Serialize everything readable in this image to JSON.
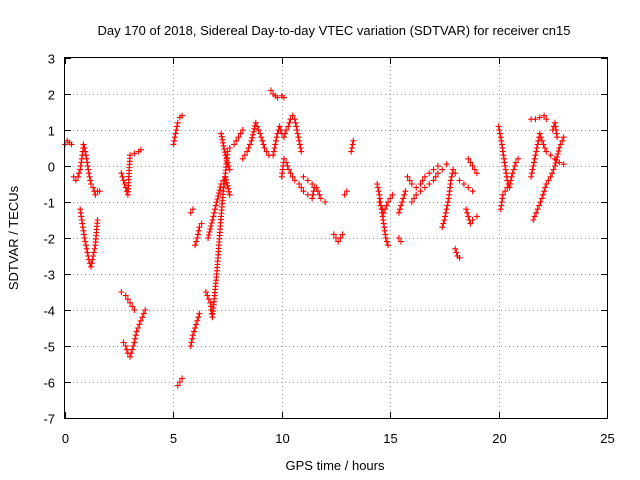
{
  "chart_data": {
    "type": "scatter",
    "title": "Day 170 of 2018, Sidereal Day-to-day VTEC variation (SDTVAR) for receiver cn15",
    "xlabel": "GPS time / hours",
    "ylabel": "SDTVAR / TECUs",
    "xlim": [
      0,
      25
    ],
    "ylim": [
      -7,
      3
    ],
    "xticks": [
      "0",
      "5",
      "10",
      "15",
      "20",
      "25"
    ],
    "yticks": [
      "-7",
      "-6",
      "-5",
      "-4",
      "-3",
      "-2",
      "-1",
      "0",
      "1",
      "2",
      "3"
    ],
    "grid": true,
    "marker": "plus",
    "color": "#ff0000",
    "segments": [
      [
        [
          0.0,
          0.6
        ],
        [
          0.1,
          0.7
        ],
        [
          0.2,
          0.65
        ],
        [
          0.3,
          0.6
        ]
      ],
      [
        [
          0.4,
          -0.3
        ],
        [
          0.5,
          -0.4
        ],
        [
          0.6,
          -0.3
        ],
        [
          0.7,
          -0.1
        ],
        [
          0.8,
          0.3
        ],
        [
          0.85,
          0.6
        ],
        [
          0.9,
          0.5
        ],
        [
          1.0,
          0.2
        ],
        [
          1.1,
          -0.2
        ],
        [
          1.2,
          -0.5
        ],
        [
          1.3,
          -0.6
        ],
        [
          1.4,
          -0.8
        ],
        [
          1.5,
          -0.7
        ],
        [
          1.6,
          -0.7
        ]
      ],
      [
        [
          0.7,
          -1.2
        ],
        [
          0.8,
          -1.6
        ],
        [
          0.9,
          -2.0
        ],
        [
          1.0,
          -2.3
        ],
        [
          1.1,
          -2.6
        ],
        [
          1.2,
          -2.8
        ],
        [
          1.3,
          -2.5
        ],
        [
          1.4,
          -2.2
        ],
        [
          1.5,
          -1.5
        ]
      ],
      [
        [
          2.6,
          -0.2
        ],
        [
          2.7,
          -0.4
        ],
        [
          2.8,
          -0.6
        ],
        [
          2.9,
          -0.8
        ],
        [
          3.0,
          0.3
        ],
        [
          3.2,
          0.35
        ],
        [
          3.4,
          0.4
        ],
        [
          3.5,
          0.45
        ]
      ],
      [
        [
          2.6,
          -3.5
        ],
        [
          2.8,
          -3.6
        ],
        [
          3.0,
          -3.8
        ],
        [
          3.2,
          -4.0
        ]
      ],
      [
        [
          2.7,
          -4.9
        ],
        [
          2.8,
          -5.0
        ],
        [
          2.9,
          -5.2
        ],
        [
          3.0,
          -5.3
        ],
        [
          3.1,
          -5.1
        ],
        [
          3.2,
          -4.9
        ],
        [
          3.3,
          -4.6
        ],
        [
          3.5,
          -4.3
        ],
        [
          3.7,
          -4.0
        ]
      ],
      [
        [
          5.0,
          0.6
        ],
        [
          5.1,
          0.9
        ],
        [
          5.2,
          1.2
        ],
        [
          5.3,
          1.35
        ],
        [
          5.4,
          1.4
        ]
      ],
      [
        [
          5.2,
          -6.1
        ],
        [
          5.3,
          -6.0
        ],
        [
          5.4,
          -5.9
        ]
      ],
      [
        [
          5.8,
          -1.3
        ],
        [
          5.9,
          -1.2
        ]
      ],
      [
        [
          5.8,
          -5.0
        ],
        [
          5.9,
          -4.7
        ],
        [
          6.0,
          -4.5
        ],
        [
          6.1,
          -4.3
        ],
        [
          6.2,
          -4.1
        ]
      ],
      [
        [
          6.0,
          -2.2
        ],
        [
          6.1,
          -2.0
        ],
        [
          6.2,
          -1.7
        ],
        [
          6.3,
          -1.6
        ]
      ],
      [
        [
          6.5,
          -3.5
        ],
        [
          6.7,
          -3.8
        ],
        [
          6.8,
          -4.2
        ],
        [
          6.9,
          -3.6
        ],
        [
          7.0,
          -3.0
        ],
        [
          7.1,
          -2.2
        ],
        [
          7.2,
          -1.4
        ],
        [
          7.3,
          -0.7
        ],
        [
          7.4,
          -0.2
        ],
        [
          7.5,
          0.4
        ],
        [
          7.6,
          0.5
        ],
        [
          7.8,
          0.6
        ],
        [
          8.0,
          0.8
        ],
        [
          8.2,
          1.0
        ]
      ],
      [
        [
          6.6,
          -2.0
        ],
        [
          6.8,
          -1.5
        ],
        [
          7.0,
          -1.0
        ],
        [
          7.2,
          -0.5
        ],
        [
          7.4,
          -0.3
        ],
        [
          7.6,
          -0.8
        ]
      ],
      [
        [
          7.2,
          0.9
        ],
        [
          7.4,
          0.3
        ],
        [
          7.6,
          -0.1
        ]
      ],
      [
        [
          8.2,
          0.2
        ],
        [
          8.4,
          0.4
        ],
        [
          8.6,
          0.7
        ],
        [
          8.8,
          1.2
        ],
        [
          9.0,
          0.9
        ],
        [
          9.2,
          0.5
        ],
        [
          9.4,
          0.3
        ]
      ],
      [
        [
          9.5,
          2.1
        ],
        [
          9.6,
          2.0
        ],
        [
          9.7,
          1.95
        ],
        [
          9.8,
          1.9
        ],
        [
          10.0,
          1.95
        ],
        [
          10.1,
          1.9
        ]
      ],
      [
        [
          9.6,
          0.3
        ],
        [
          9.7,
          0.6
        ],
        [
          9.8,
          0.9
        ],
        [
          9.9,
          1.1
        ],
        [
          10.0,
          0.9
        ],
        [
          10.1,
          0.8
        ],
        [
          10.2,
          1.0
        ],
        [
          10.3,
          1.1
        ],
        [
          10.4,
          1.3
        ],
        [
          10.5,
          1.4
        ],
        [
          10.6,
          1.3
        ],
        [
          10.7,
          1.0
        ],
        [
          10.8,
          0.7
        ],
        [
          10.9,
          0.4
        ]
      ],
      [
        [
          10.0,
          -0.3
        ],
        [
          10.1,
          0.2
        ],
        [
          10.2,
          0.1
        ],
        [
          10.4,
          -0.2
        ],
        [
          10.6,
          -0.4
        ],
        [
          10.8,
          -0.5
        ],
        [
          11.0,
          -0.7
        ],
        [
          11.2,
          -0.8
        ],
        [
          11.4,
          -0.9
        ],
        [
          11.5,
          -0.6
        ]
      ],
      [
        [
          11.0,
          -0.3
        ],
        [
          11.2,
          -0.4
        ],
        [
          11.4,
          -0.5
        ],
        [
          11.6,
          -0.6
        ],
        [
          11.8,
          -0.9
        ],
        [
          12.0,
          -1.0
        ]
      ],
      [
        [
          12.4,
          -1.9
        ],
        [
          12.5,
          -2.0
        ],
        [
          12.6,
          -2.1
        ],
        [
          12.7,
          -2.0
        ],
        [
          12.8,
          -1.9
        ]
      ],
      [
        [
          12.9,
          -0.8
        ],
        [
          13.0,
          -0.7
        ]
      ],
      [
        [
          13.2,
          0.4
        ],
        [
          13.3,
          0.7
        ]
      ],
      [
        [
          14.4,
          -0.5
        ],
        [
          14.5,
          -0.8
        ],
        [
          14.6,
          -1.2
        ],
        [
          14.7,
          -1.6
        ],
        [
          14.8,
          -2.0
        ],
        [
          14.9,
          -2.2
        ]
      ],
      [
        [
          14.5,
          -1.0
        ],
        [
          14.7,
          -1.3
        ],
        [
          14.9,
          -1.0
        ],
        [
          15.1,
          -0.8
        ]
      ],
      [
        [
          15.4,
          -1.3
        ],
        [
          15.5,
          -1.1
        ],
        [
          15.6,
          -0.9
        ],
        [
          15.7,
          -0.7
        ]
      ],
      [
        [
          15.4,
          -2.0
        ],
        [
          15.5,
          -2.1
        ]
      ],
      [
        [
          15.8,
          -0.3
        ],
        [
          16.0,
          -0.5
        ],
        [
          16.2,
          -0.6
        ],
        [
          16.4,
          -0.5
        ],
        [
          16.6,
          -0.3
        ],
        [
          16.8,
          -0.2
        ],
        [
          17.0,
          -0.1
        ],
        [
          17.2,
          0.0
        ],
        [
          17.4,
          -0.1
        ],
        [
          17.6,
          0.05
        ]
      ],
      [
        [
          16.0,
          -1.0
        ],
        [
          16.2,
          -0.8
        ],
        [
          16.4,
          -0.7
        ],
        [
          16.6,
          -0.6
        ],
        [
          16.8,
          -0.5
        ],
        [
          17.0,
          -0.4
        ],
        [
          17.2,
          -0.2
        ]
      ],
      [
        [
          17.4,
          -1.7
        ],
        [
          17.5,
          -1.5
        ],
        [
          17.6,
          -1.2
        ],
        [
          17.7,
          -0.9
        ],
        [
          17.8,
          -0.4
        ],
        [
          17.9,
          -0.1
        ],
        [
          18.0,
          -0.2
        ]
      ],
      [
        [
          18.0,
          -2.3
        ],
        [
          18.1,
          -2.5
        ],
        [
          18.2,
          -2.55
        ]
      ],
      [
        [
          18.2,
          -0.4
        ],
        [
          18.4,
          -0.5
        ],
        [
          18.6,
          -0.6
        ],
        [
          18.8,
          -0.7
        ]
      ],
      [
        [
          18.5,
          -1.2
        ],
        [
          18.6,
          -1.4
        ],
        [
          18.7,
          -1.6
        ],
        [
          18.8,
          -1.5
        ],
        [
          19.0,
          -1.4
        ]
      ],
      [
        [
          18.6,
          0.2
        ],
        [
          18.8,
          0.0
        ],
        [
          19.0,
          -0.2
        ]
      ],
      [
        [
          20.0,
          1.1
        ],
        [
          20.1,
          0.8
        ],
        [
          20.2,
          0.4
        ],
        [
          20.3,
          0.0
        ],
        [
          20.4,
          -0.4
        ],
        [
          20.5,
          -0.6
        ],
        [
          20.6,
          -0.3
        ],
        [
          20.7,
          -0.1
        ],
        [
          20.8,
          0.1
        ],
        [
          20.9,
          0.2
        ]
      ],
      [
        [
          20.1,
          -1.2
        ],
        [
          20.2,
          -0.8
        ],
        [
          20.4,
          -0.6
        ]
      ],
      [
        [
          21.5,
          1.3
        ],
        [
          21.7,
          1.3
        ],
        [
          21.9,
          1.35
        ],
        [
          22.1,
          1.4
        ],
        [
          22.2,
          1.3
        ]
      ],
      [
        [
          21.5,
          -0.3
        ],
        [
          21.6,
          0.0
        ],
        [
          21.7,
          0.3
        ],
        [
          21.8,
          0.6
        ],
        [
          21.9,
          0.9
        ],
        [
          22.0,
          0.7
        ],
        [
          22.2,
          0.4
        ],
        [
          22.4,
          0.3
        ],
        [
          22.6,
          0.2
        ],
        [
          22.8,
          0.1
        ],
        [
          23.0,
          0.05
        ]
      ],
      [
        [
          21.6,
          -1.5
        ],
        [
          21.8,
          -1.2
        ],
        [
          22.0,
          -0.9
        ],
        [
          22.2,
          -0.5
        ],
        [
          22.4,
          -0.3
        ],
        [
          22.6,
          0.0
        ],
        [
          22.8,
          0.5
        ],
        [
          23.0,
          0.8
        ]
      ],
      [
        [
          22.5,
          1.0
        ],
        [
          22.6,
          1.2
        ],
        [
          22.7,
          0.8
        ]
      ]
    ]
  }
}
